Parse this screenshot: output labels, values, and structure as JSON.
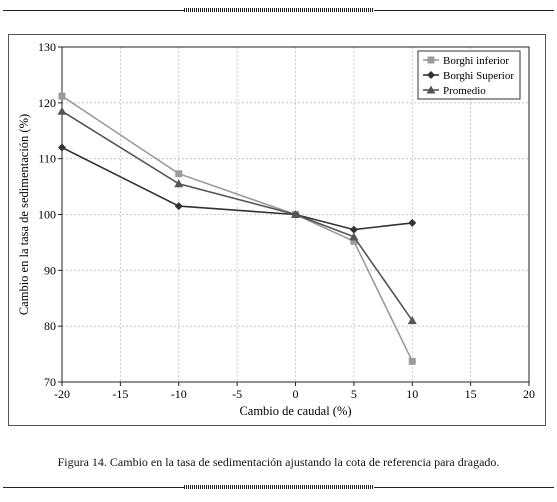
{
  "caption": "Figura 14. Cambio en la tasa de sedimentación ajustando la cota de referencia para dragado.",
  "chart_data": {
    "type": "line",
    "title": "",
    "xlabel": "Cambio de caudal (%)",
    "ylabel": "Cambio en la tasa de sedimentación (%)",
    "xlim": [
      -20,
      20
    ],
    "ylim": [
      70,
      130
    ],
    "xticks": [
      "-20",
      "-15",
      "-10",
      "-5",
      "0",
      "5",
      "10",
      "15",
      "20"
    ],
    "yticks": [
      "70",
      "80",
      "90",
      "100",
      "110",
      "120",
      "130"
    ],
    "grid": true,
    "legend_position": "top-right",
    "series": [
      {
        "name": "Borghi inferior",
        "marker": "square",
        "color": "#9b9b9b",
        "x": [
          -20,
          -10,
          0,
          5,
          10
        ],
        "y": [
          121.2,
          107.3,
          100.0,
          95.2,
          73.7
        ]
      },
      {
        "name": "Borghi Superior",
        "marker": "diamond",
        "color": "#333333",
        "x": [
          -20,
          -10,
          0,
          5,
          10
        ],
        "y": [
          112.0,
          101.5,
          100.0,
          97.3,
          98.5
        ]
      },
      {
        "name": "Promedio",
        "marker": "triangle",
        "color": "#555555",
        "x": [
          -20,
          -10,
          0,
          5,
          10
        ],
        "y": [
          118.5,
          105.5,
          100.0,
          96.0,
          81.0
        ]
      }
    ]
  }
}
